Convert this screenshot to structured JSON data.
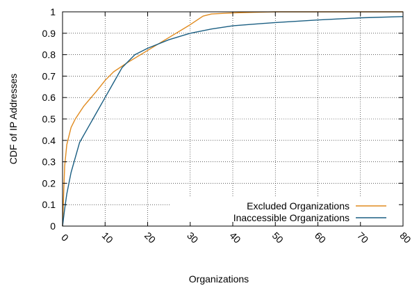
{
  "chart_data": {
    "type": "line",
    "xlabel": "Organizations",
    "ylabel": "CDF of IP Addresses",
    "xlim": [
      0,
      80
    ],
    "ylim": [
      0,
      1
    ],
    "xticks": [
      "0",
      "10",
      "20",
      "30",
      "40",
      "50",
      "60",
      "70",
      "80"
    ],
    "yticks": [
      "0",
      "0.1",
      "0.2",
      "0.3",
      "0.4",
      "0.5",
      "0.6",
      "0.7",
      "0.8",
      "0.9",
      "1"
    ],
    "grid": true,
    "legend_position": "bottom-right",
    "series": [
      {
        "name": "Excluded Organizations",
        "color": "#e08a1e",
        "x": [
          0,
          0.5,
          1,
          2,
          3,
          5,
          8,
          10,
          12,
          15,
          20,
          25,
          30,
          33,
          35,
          40,
          45,
          50,
          80
        ],
        "y": [
          0,
          0.28,
          0.38,
          0.46,
          0.5,
          0.56,
          0.63,
          0.68,
          0.72,
          0.76,
          0.82,
          0.88,
          0.94,
          0.98,
          0.99,
          0.995,
          0.998,
          1.0,
          1.0
        ]
      },
      {
        "name": "Inaccessible Organizations",
        "color": "#1a5e82",
        "x": [
          0,
          0.5,
          1,
          2,
          4,
          6,
          8,
          10,
          12,
          14,
          17,
          20,
          25,
          30,
          35,
          40,
          50,
          60,
          70,
          80
        ],
        "y": [
          0,
          0.08,
          0.15,
          0.25,
          0.39,
          0.46,
          0.53,
          0.6,
          0.67,
          0.74,
          0.8,
          0.83,
          0.87,
          0.9,
          0.92,
          0.935,
          0.95,
          0.962,
          0.972,
          0.978
        ]
      }
    ]
  }
}
